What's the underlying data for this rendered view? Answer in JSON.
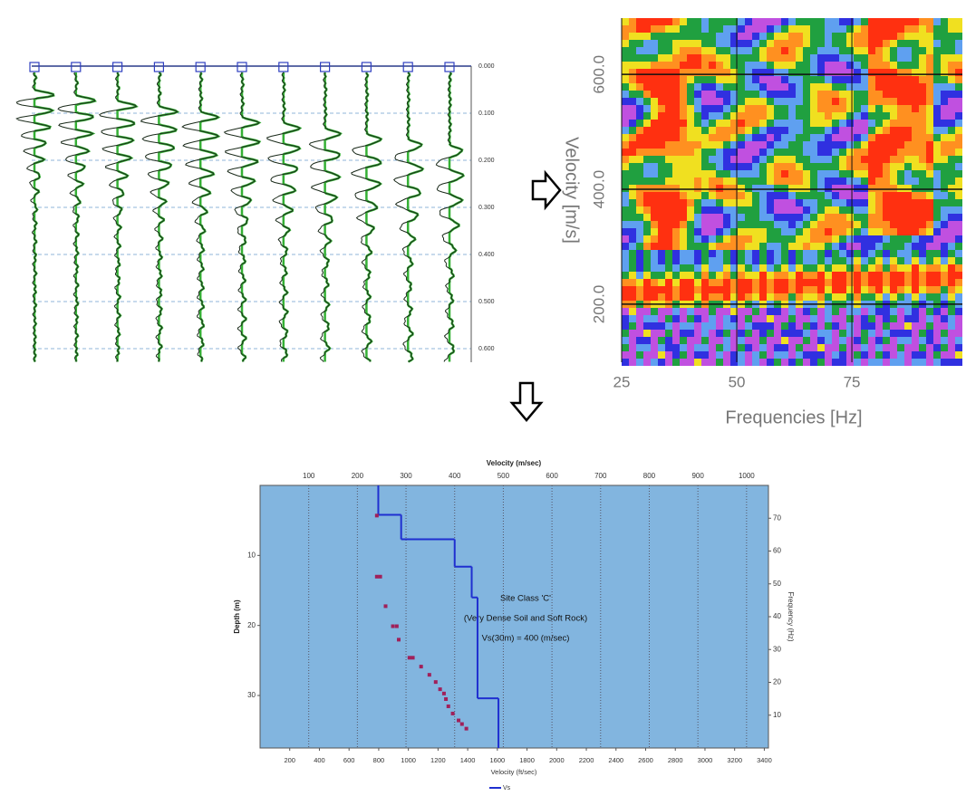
{
  "chart_data": [
    {
      "type": "seismogram",
      "ylim": [
        0,
        0.6
      ],
      "yticks": [
        {
          "value": 0,
          "label": "0.000"
        },
        {
          "value": 0.1,
          "label": "0.100"
        },
        {
          "value": 0.2,
          "label": "0.200"
        },
        {
          "value": 0.3,
          "label": "0.300"
        },
        {
          "value": 0.4,
          "label": "0.400"
        },
        {
          "value": 0.5,
          "label": "0.500"
        },
        {
          "value": 0.6,
          "label": "0.600"
        }
      ]
    },
    {
      "type": "heatmap",
      "xlabel": "Frequencies [Hz]",
      "ylabel": "Velocity [m/s]",
      "xlim": [
        25,
        99
      ],
      "xticks": [
        25,
        50,
        75
      ],
      "ylim": [
        99,
        698
      ],
      "yticks": [
        {
          "value": 200,
          "label": "200.0"
        },
        {
          "value": 400,
          "label": "400.0"
        },
        {
          "value": 600,
          "label": "600.0"
        }
      ]
    },
    {
      "type": "profile",
      "title": "Velocity (m/sec)",
      "xlabel": "Velocity (ft/sec)",
      "ylabel": "Depth (m)",
      "y2label": "Frequency (Hz)",
      "xlim": [
        0,
        1045
      ],
      "xticks": [
        100,
        200,
        300,
        400,
        500,
        600,
        700,
        800,
        900,
        1000
      ],
      "x2lim": [
        0,
        3428
      ],
      "x2ticks": [
        200,
        400,
        600,
        800,
        1000,
        1200,
        1400,
        1600,
        1800,
        2000,
        2200,
        2400,
        2600,
        2800,
        3000,
        3200,
        3400
      ],
      "ylim": [
        0,
        37.5
      ],
      "yticks": [
        10,
        20,
        30
      ],
      "y2lim": [
        0,
        80
      ],
      "y2ticks": [
        10,
        20,
        30,
        40,
        50,
        60,
        70
      ],
      "grid": true,
      "annotations": [
        "Site Class 'C'",
        "(Very Dense Soil and Soft Rock)",
        "Vs(30m) = 400 (m/sec)"
      ],
      "series": [
        {
          "name": "Vs",
          "color": "#1f2fd0",
          "depth": [
            0,
            4.2,
            7.7,
            11.6,
            16.0,
            30.4
          ],
          "values": [
            243,
            290,
            400,
            435,
            447,
            490
          ]
        },
        {
          "type": "scatter",
          "color": "#a0205a",
          "axis": "y2",
          "x": [
            240,
            240,
            247,
            258,
            273,
            281,
            285,
            307,
            314,
            331,
            348,
            361,
            370,
            378,
            382,
            387,
            396,
            408,
            415,
            424
          ],
          "values": [
            70.8,
            52.2,
            52.2,
            43.2,
            37.1,
            37.1,
            33.0,
            27.5,
            27.5,
            24.8,
            22.3,
            20.1,
            17.9,
            16.6,
            14.9,
            12.7,
            10.5,
            8.4,
            7.3,
            5.9
          ]
        }
      ]
    }
  ]
}
